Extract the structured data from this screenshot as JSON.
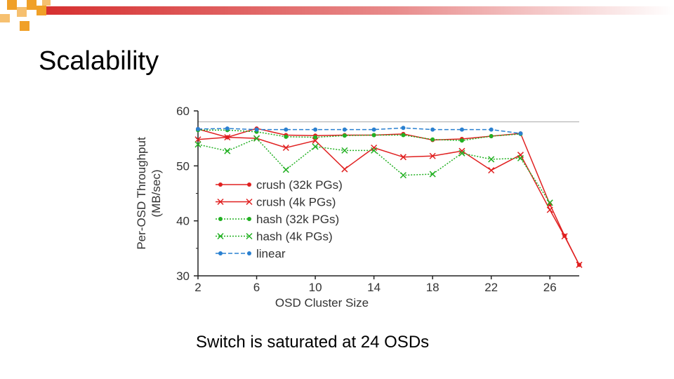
{
  "slide": {
    "title": "Scalability",
    "caption": "Switch is saturated at 24 OSDs"
  },
  "colors": {
    "decor_orange": "#f0a028",
    "decor_red": "#d63030",
    "crush": "#e02020",
    "hash": "#22b022",
    "linear": "#2a80d0"
  },
  "chart_data": {
    "type": "line",
    "xlabel": "OSD Cluster Size",
    "ylabel_lines": [
      "Per-OSD Throughput",
      "(MB/sec)"
    ],
    "xlim": [
      2,
      28
    ],
    "ylim": [
      30,
      60
    ],
    "xticks": [
      2,
      6,
      10,
      14,
      18,
      22,
      26
    ],
    "yticks": [
      30,
      40,
      50,
      60
    ],
    "reference_line": 58,
    "grid": false,
    "legend_position": "center-left",
    "series": [
      {
        "name": "crush (32k PGs)",
        "color": "#e02020",
        "style": "solid",
        "marker": "dot",
        "x": [
          2,
          4,
          6,
          8,
          10,
          12,
          14,
          16,
          18,
          20,
          22,
          24,
          26,
          27,
          28
        ],
        "y": [
          56.7,
          55.2,
          56.8,
          55.6,
          55.5,
          55.6,
          55.6,
          55.8,
          54.7,
          54.9,
          55.4,
          55.9,
          43.0,
          37.3,
          32.0
        ]
      },
      {
        "name": "crush (4k PGs)",
        "color": "#e02020",
        "style": "solid",
        "marker": "x",
        "x": [
          2,
          4,
          6,
          8,
          10,
          12,
          14,
          16,
          18,
          20,
          22,
          24,
          26,
          27,
          28
        ],
        "y": [
          54.8,
          55.2,
          55.0,
          53.3,
          54.6,
          49.4,
          53.3,
          51.6,
          51.8,
          52.7,
          49.2,
          52.0,
          42.0,
          37.2,
          32.0
        ]
      },
      {
        "name": "hash (32k PGs)",
        "color": "#22b022",
        "style": "dotted",
        "marker": "dot",
        "x": [
          2,
          4,
          6,
          8,
          10,
          12,
          14,
          16,
          18,
          20,
          22,
          24
        ],
        "y": [
          56.5,
          56.5,
          56.2,
          55.3,
          55.2,
          55.5,
          55.6,
          55.6,
          54.8,
          54.6,
          55.4,
          55.8
        ]
      },
      {
        "name": "hash (4k PGs)",
        "color": "#22b022",
        "style": "dotted",
        "marker": "x",
        "x": [
          2,
          4,
          6,
          8,
          10,
          12,
          14,
          16,
          18,
          20,
          22,
          24,
          26
        ],
        "y": [
          53.9,
          52.7,
          55.0,
          49.3,
          53.5,
          52.8,
          52.8,
          48.3,
          48.5,
          52.3,
          51.2,
          51.4,
          43.3
        ]
      },
      {
        "name": "linear",
        "color": "#2a80d0",
        "style": "dashed",
        "marker": "dot",
        "x": [
          2,
          4,
          6,
          8,
          10,
          12,
          14,
          16,
          18,
          20,
          22,
          24
        ],
        "y": [
          56.7,
          56.8,
          56.6,
          56.6,
          56.6,
          56.6,
          56.6,
          56.9,
          56.6,
          56.6,
          56.6,
          55.9
        ]
      }
    ]
  }
}
